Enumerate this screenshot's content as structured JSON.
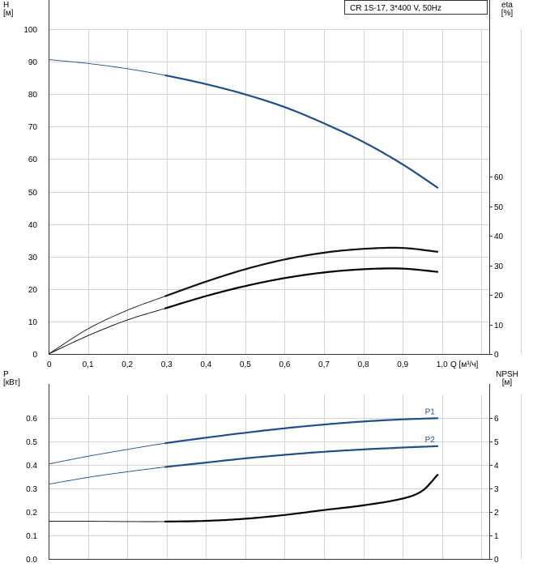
{
  "chart_data": [
    {
      "type": "line",
      "legend_box": "CR 1S-17, 3*400 V, 50Hz",
      "xlabel": "Q [м³/ч]",
      "xticks": [
        "0",
        "0,1",
        "0,2",
        "0,3",
        "0,4",
        "0,5",
        "0,6",
        "0,7",
        "0,8",
        "0,9",
        "1,0"
      ],
      "xlim": [
        0,
        1.12
      ],
      "left_axis": {
        "label_line1": "H",
        "label_line2": "[м]",
        "ticks": [
          "0",
          "10",
          "20",
          "30",
          "40",
          "50",
          "60",
          "70",
          "80",
          "90",
          "100"
        ],
        "ylim": [
          0,
          110
        ]
      },
      "right_axis": {
        "label_line1": "eta",
        "label_line2": "[%]",
        "ticks": [
          "0",
          "10",
          "20",
          "30",
          "40",
          "50",
          "60"
        ],
        "ylim": [
          0,
          110
        ]
      },
      "grid": true,
      "operating_range_start": 0.295,
      "series": [
        {
          "axis": "H",
          "color": "#1f4e8c",
          "x": [
            0,
            0.1,
            0.2,
            0.295,
            0.4,
            0.5,
            0.6,
            0.7,
            0.8,
            0.9,
            0.99
          ],
          "y": [
            99.7,
            98.4,
            96.6,
            94.4,
            91.4,
            87.9,
            83.6,
            78.1,
            71.8,
            64.2,
            56.2
          ]
        },
        {
          "axis": "eta",
          "color": "#111111",
          "x": [
            0,
            0.1,
            0.2,
            0.295,
            0.4,
            0.5,
            0.6,
            0.7,
            0.8,
            0.9,
            0.99
          ],
          "y": [
            0,
            8.5,
            14.8,
            19.5,
            24.5,
            28.7,
            32.0,
            34.3,
            35.6,
            35.9,
            34.6
          ]
        },
        {
          "axis": "eta",
          "color": "#000000",
          "x": [
            0,
            0.1,
            0.2,
            0.295,
            0.4,
            0.5,
            0.6,
            0.7,
            0.8,
            0.9,
            0.99
          ],
          "y": [
            0,
            6.2,
            11.5,
            15.4,
            19.6,
            23.0,
            25.7,
            27.6,
            28.7,
            28.9,
            27.8
          ]
        }
      ]
    },
    {
      "type": "line",
      "xlim": [
        0,
        1.12
      ],
      "left_axis": {
        "label_line1": "P",
        "label_line2": "[кВт]",
        "ticks": [
          "0.0",
          "0.1",
          "0.2",
          "0.3",
          "0.4",
          "0.5",
          "0.6"
        ],
        "ylim": [
          0,
          0.7
        ]
      },
      "right_axis": {
        "label_line1": "NPSH",
        "label_line2": "[м]",
        "ticks": [
          "0",
          "1",
          "2",
          "3",
          "4",
          "5",
          "6"
        ],
        "ylim": [
          0,
          7
        ]
      },
      "grid": true,
      "operating_range_start": 0.295,
      "series": [
        {
          "name": "P1",
          "axis": "P",
          "color": "#1f4e8c",
          "x": [
            0,
            0.1,
            0.2,
            0.295,
            0.4,
            0.5,
            0.6,
            0.7,
            0.8,
            0.9,
            0.99
          ],
          "y": [
            0.404,
            0.437,
            0.466,
            0.492,
            0.516,
            0.537,
            0.556,
            0.572,
            0.585,
            0.594,
            0.599
          ]
        },
        {
          "name": "P2",
          "axis": "P",
          "color": "#1f4e8c",
          "x": [
            0,
            0.1,
            0.2,
            0.295,
            0.4,
            0.5,
            0.6,
            0.7,
            0.8,
            0.9,
            0.99
          ],
          "y": [
            0.318,
            0.347,
            0.371,
            0.391,
            0.41,
            0.428,
            0.443,
            0.456,
            0.466,
            0.474,
            0.48
          ]
        },
        {
          "axis": "NPSH",
          "color": "#000000",
          "x": [
            0,
            0.1,
            0.2,
            0.295,
            0.4,
            0.5,
            0.6,
            0.7,
            0.8,
            0.9,
            0.95,
            0.99
          ],
          "y": [
            1.6,
            1.6,
            1.59,
            1.59,
            1.62,
            1.71,
            1.87,
            2.08,
            2.28,
            2.57,
            2.9,
            3.6
          ]
        }
      ]
    }
  ]
}
